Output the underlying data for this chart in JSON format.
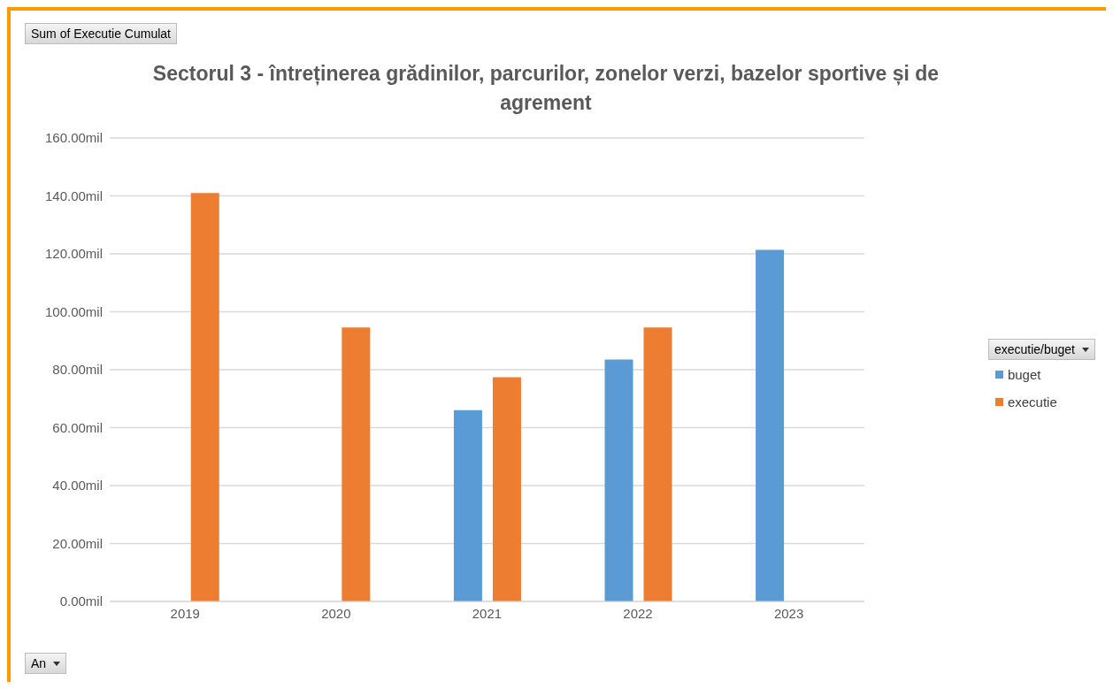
{
  "chart_data": {
    "type": "bar",
    "title": "Sectorul 3 - întreținerea grădinilor, parcurilor, zonelor verzi, bazelor sportive și de agrement",
    "categories": [
      "2019",
      "2020",
      "2021",
      "2022",
      "2023"
    ],
    "series": [
      {
        "name": "buget",
        "color": "#5b9bd5",
        "values": [
          null,
          null,
          66,
          83.5,
          121.4
        ]
      },
      {
        "name": "executie",
        "color": "#ed7d31",
        "values": [
          141,
          94.6,
          77.4,
          94.6,
          null
        ]
      }
    ],
    "ylim": [
      0,
      160
    ],
    "yticks": [
      {
        "value": 0,
        "label": "0.00mil"
      },
      {
        "value": 20,
        "label": "20.00mil"
      },
      {
        "value": 40,
        "label": "40.00mil"
      },
      {
        "value": 60,
        "label": "60.00mil"
      },
      {
        "value": 80,
        "label": "80.00mil"
      },
      {
        "value": 100,
        "label": "100.00mil"
      },
      {
        "value": 120,
        "label": "120.00mil"
      },
      {
        "value": 140,
        "label": "140.00mil"
      },
      {
        "value": 160,
        "label": "160.00mil"
      }
    ],
    "grid": "y",
    "legend": "right",
    "legend_title": "executie/buget",
    "annotations": [
      "Sum of Executie Cumulat",
      "An"
    ]
  }
}
